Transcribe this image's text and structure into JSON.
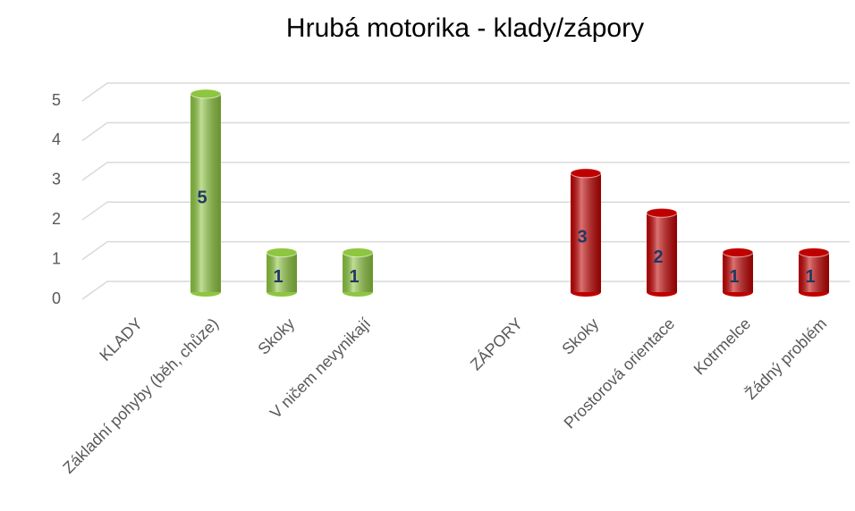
{
  "chart_data": {
    "type": "bar",
    "title": "Hrubá motorika - klady/zápory",
    "categories": [
      "KLADY",
      "Základní pohyby (běh, chůze)",
      "Skoky",
      "V ničem nevynikají",
      null,
      "ZÁPORY",
      "Skoky",
      "Prostorová orientace",
      "Kotrmelce",
      "Žádný problém"
    ],
    "values": [
      null,
      5,
      1,
      1,
      null,
      null,
      3,
      2,
      1,
      1
    ],
    "colors": [
      "#8dc63f",
      "#8dc63f",
      "#8dc63f",
      "#8dc63f",
      "#8dc63f",
      "#c00000",
      "#c00000",
      "#c00000",
      "#c00000",
      "#c00000"
    ],
    "ylim": [
      0,
      5
    ],
    "yticks": [
      0,
      1,
      2,
      3,
      4,
      5
    ],
    "grid": true
  }
}
